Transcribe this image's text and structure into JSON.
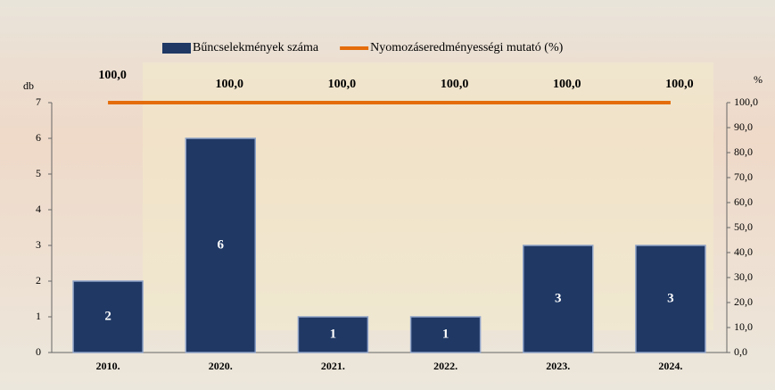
{
  "chart_data": {
    "type": "combo",
    "categories": [
      "2010.",
      "2020.",
      "2021.",
      "2022.",
      "2023.",
      "2024."
    ],
    "series": [
      {
        "name": "Bűncselekmények száma",
        "type": "bar",
        "color": "#1f3864",
        "values": [
          2,
          6,
          1,
          1,
          3,
          3
        ]
      },
      {
        "name": "Nyomozáseredményességi mutató (%)",
        "type": "line",
        "axis": "y2",
        "color": "#e46c0a",
        "values": [
          100,
          100,
          100,
          100,
          100,
          100
        ],
        "value_labels": [
          "100,0",
          "100,0",
          "100,0",
          "100,0",
          "100,0",
          "100,0"
        ]
      }
    ],
    "ylabel": "db",
    "y2label": "%",
    "ylim": [
      0,
      7
    ],
    "yticks": [
      0,
      1,
      2,
      3,
      4,
      5,
      6,
      7
    ],
    "y2lim": [
      0,
      100
    ],
    "y2ticks": [
      {
        "value": 0,
        "label": "0,0"
      },
      {
        "value": 10,
        "label": "10,0"
      },
      {
        "value": 20,
        "label": "20,0"
      },
      {
        "value": 30,
        "label": "30,0"
      },
      {
        "value": 40,
        "label": "40,0"
      },
      {
        "value": 50,
        "label": "50,0"
      },
      {
        "value": 60,
        "label": "60,0"
      },
      {
        "value": 70,
        "label": "70,0"
      },
      {
        "value": 80,
        "label": "80,0"
      },
      {
        "value": 90,
        "label": "90,0"
      },
      {
        "value": 100,
        "label": "100,0"
      }
    ],
    "legend": "top"
  }
}
